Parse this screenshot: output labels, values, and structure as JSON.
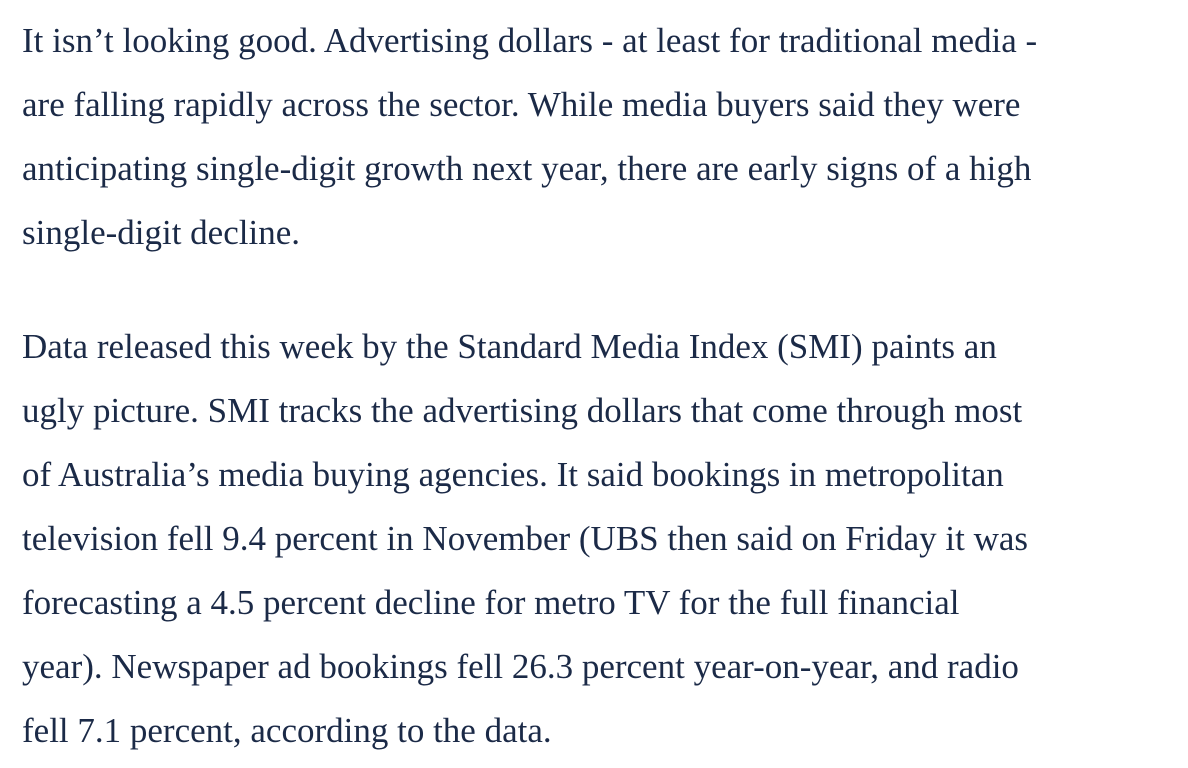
{
  "article": {
    "paragraphs": [
      "It isn’t looking good. Advertising dollars - at least for traditional media -\nare falling rapidly across the sector. While media buyers said they were\nanticipating single-digit growth next year, there are early signs of a high\nsingle-digit decline.",
      "Data released this week by the Standard Media Index (SMI) paints an\nugly picture. SMI tracks the advertising dollars that come through most\nof Australia’s media buying agencies. It said bookings in metropolitan\ntelevision fell 9.4 percent in November (UBS then said on Friday it was\nforecasting a 4.5 percent decline for metro TV for the full financial\nyear). Newspaper ad bookings fell 26.3 percent year-on-year, and radio\nfell 7.1 percent, according to the data."
    ]
  },
  "colors": {
    "text": "#1b2a47",
    "background": "#ffffff"
  }
}
